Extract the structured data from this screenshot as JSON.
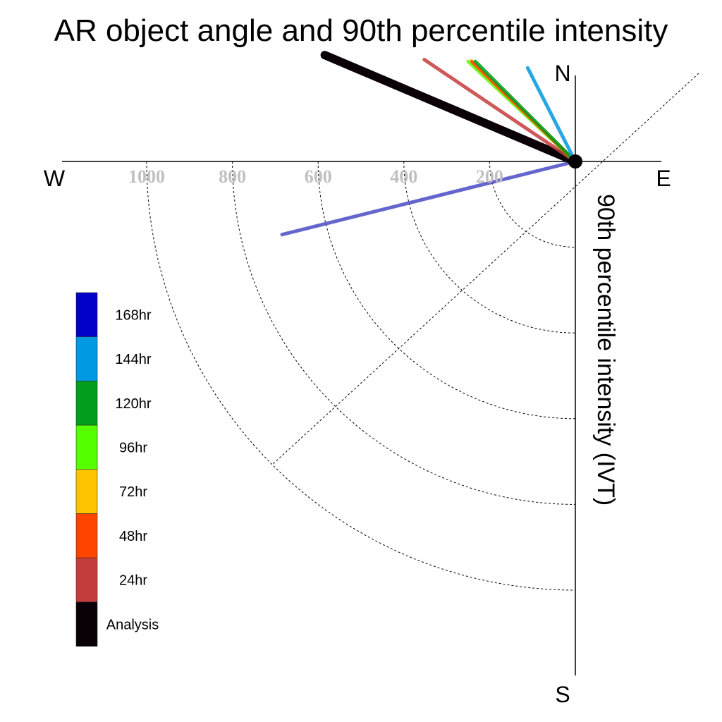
{
  "chart_data": {
    "type": "polar-line",
    "title": "AR object angle and 90th percentile intensity",
    "ylabel": "90th percentile intensity (IVT)",
    "compass": {
      "north": "N",
      "south": "S",
      "east": "E",
      "west": "W"
    },
    "radial_ticks": [
      200,
      400,
      600,
      800,
      1000
    ],
    "radial_tick_labels": [
      "200",
      "400",
      "600",
      "800",
      "1000"
    ],
    "radial_max": 1200,
    "grid": true,
    "legend_placement": "left",
    "series": [
      {
        "name": "Analysis",
        "angle_deg": 157,
        "value": 635,
        "color": "#0a0008"
      },
      {
        "name": "24hr",
        "angle_deg": 146,
        "value": 425,
        "color": "#c43c3c"
      },
      {
        "name": "48hr",
        "angle_deg": 136,
        "value": 335,
        "color": "#ff4400"
      },
      {
        "name": "72hr",
        "angle_deg": 136,
        "value": 338,
        "color": "#ffc400"
      },
      {
        "name": "96hr",
        "angle_deg": 137,
        "value": 342,
        "color": "#55ff00"
      },
      {
        "name": "120hr",
        "angle_deg": 135,
        "value": 330,
        "color": "#009e1b"
      },
      {
        "name": "144hr",
        "angle_deg": 117,
        "value": 245,
        "color": "#0098e0"
      },
      {
        "name": "168hr",
        "angle_deg": 194,
        "value": 705,
        "color": "#4a4ac6"
      }
    ],
    "legend": [
      {
        "label": "168hr",
        "color": "#0000c8"
      },
      {
        "label": "144hr",
        "color": "#0098e0"
      },
      {
        "label": "120hr",
        "color": "#009e1b"
      },
      {
        "label": "96hr",
        "color": "#55ff00"
      },
      {
        "label": "72hr",
        "color": "#ffc400"
      },
      {
        "label": "48hr",
        "color": "#ff4400"
      },
      {
        "label": "24hr",
        "color": "#c43c3c"
      },
      {
        "label": "Analysis",
        "color": "#0a0008"
      }
    ]
  }
}
